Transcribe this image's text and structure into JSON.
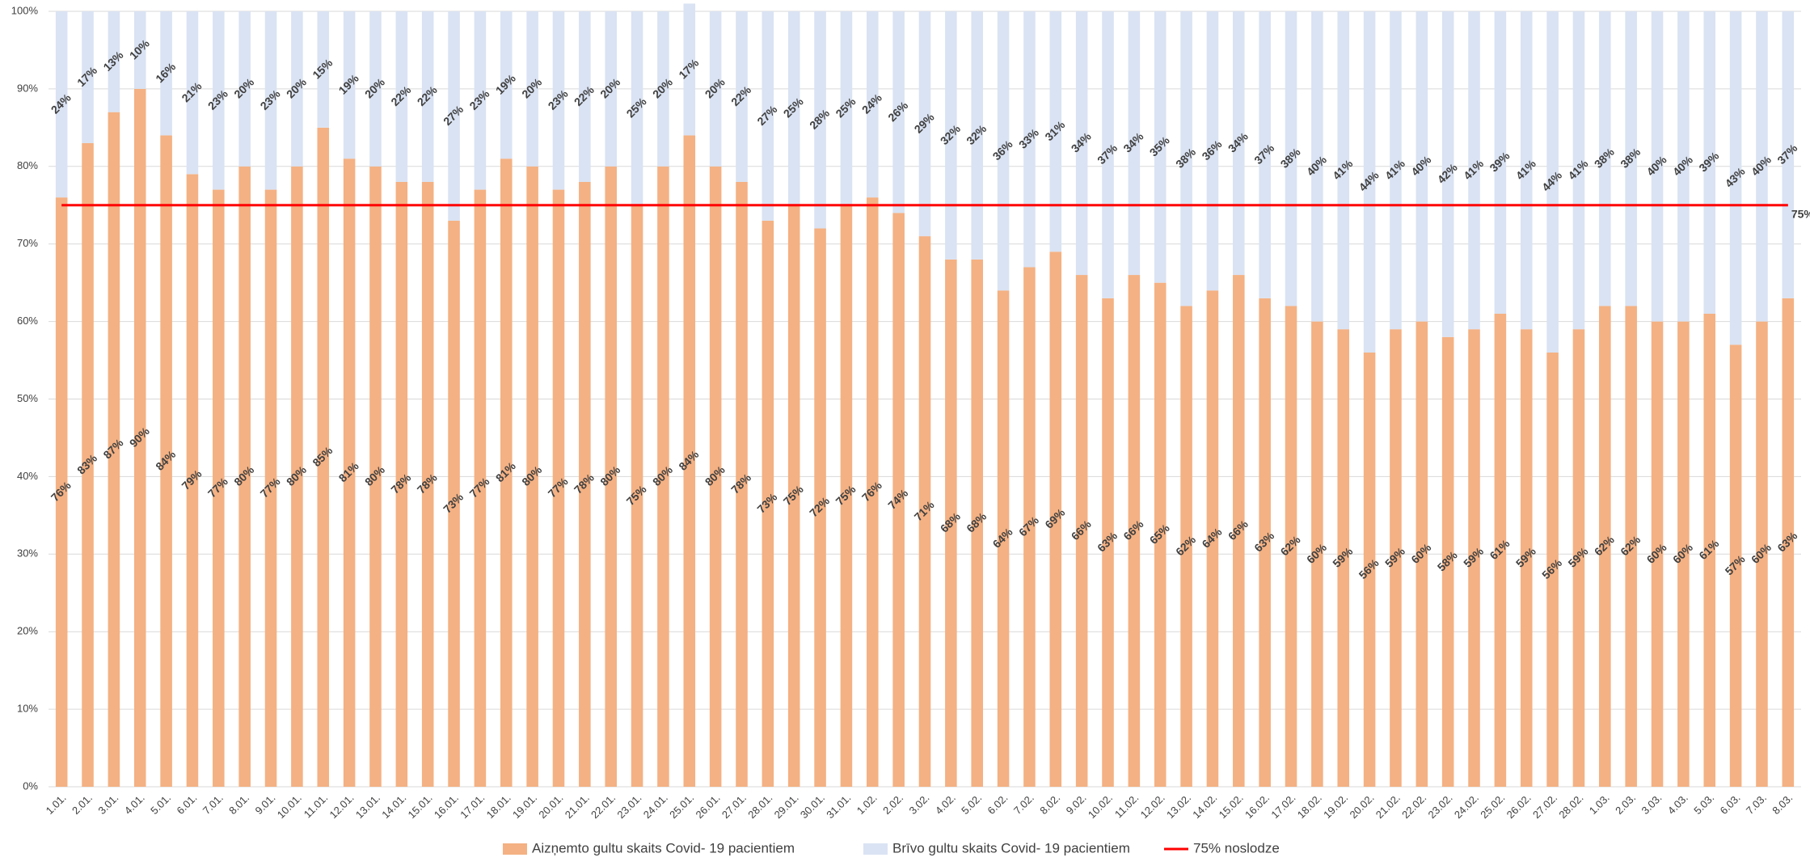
{
  "chart_data": {
    "type": "stacked_bar_100",
    "categories": [
      "1.01.",
      "2.01.",
      "3.01.",
      "4.01.",
      "5.01.",
      "6.01.",
      "7.01.",
      "8.01.",
      "9.01.",
      "10.01.",
      "11.01.",
      "12.01.",
      "13.01.",
      "14.01.",
      "15.01.",
      "16.01.",
      "17.01.",
      "18.01.",
      "19.01.",
      "20.01.",
      "21.01.",
      "22.01.",
      "23.01.",
      "24.01.",
      "25.01.",
      "26.01.",
      "27.01.",
      "28.01.",
      "29.01.",
      "30.01.",
      "31.01.",
      "1.02.",
      "2.02.",
      "3.02.",
      "4.02.",
      "5.02.",
      "6.02.",
      "7.02.",
      "8.02.",
      "9.02.",
      "10.02.",
      "11.02.",
      "12.02.",
      "13.02.",
      "14.02.",
      "15.02.",
      "16.02.",
      "17.02.",
      "18.02.",
      "19.02.",
      "20.02.",
      "21.02.",
      "22.02.",
      "23.02.",
      "24.02.",
      "25.02.",
      "26.02.",
      "27.02.",
      "28.02.",
      "1.03.",
      "2.03.",
      "3.03.",
      "4.03.",
      "5.03.",
      "6.03.",
      "7.03.",
      "8.03."
    ],
    "series": [
      {
        "name": "Aizņemto gultu skaits Covid- 19 pacientiem",
        "color": "#f4b183",
        "values": [
          76,
          83,
          87,
          90,
          84,
          79,
          77,
          80,
          77,
          80,
          85,
          81,
          80,
          78,
          78,
          73,
          77,
          81,
          80,
          77,
          78,
          80,
          75,
          80,
          84,
          80,
          78,
          73,
          75,
          72,
          75,
          76,
          74,
          71,
          68,
          68,
          64,
          67,
          69,
          66,
          63,
          66,
          65,
          62,
          64,
          66,
          63,
          62,
          60,
          59,
          56,
          59,
          60,
          58,
          59,
          61,
          59,
          56,
          59,
          62,
          62,
          60,
          60,
          61,
          57,
          60,
          63
        ],
        "value_labels": [
          "76%",
          "83%",
          "87%",
          "90%",
          "84%",
          "79%",
          "77%",
          "80%",
          "77%",
          "80%",
          "85%",
          "81%",
          "80%",
          "78%",
          "78%",
          "73%",
          "77%",
          "81%",
          "80%",
          "77%",
          "78%",
          "80%",
          "75%",
          "80%",
          "84%",
          "80%",
          "78%",
          "73%",
          "75%",
          "72%",
          "75%",
          "76%",
          "74%",
          "71%",
          "68%",
          "68%",
          "64%",
          "67%",
          "69%",
          "66%",
          "63%",
          "66%",
          "65%",
          "62%",
          "64%",
          "66%",
          "63%",
          "62%",
          "60%",
          "59%",
          "56%",
          "59%",
          "60%",
          "58%",
          "59%",
          "61%",
          "59%",
          "56%",
          "59%",
          "62%",
          "62%",
          "60%",
          "60%",
          "61%",
          "57%",
          "60%",
          "63%"
        ]
      },
      {
        "name": "Brīvo gultu skaits Covid- 19 pacientiem",
        "color": "#dae3f3",
        "values": [
          24,
          17,
          13,
          10,
          16,
          21,
          23,
          20,
          23,
          20,
          15,
          19,
          20,
          22,
          22,
          27,
          23,
          19,
          20,
          23,
          22,
          20,
          25,
          20,
          17,
          20,
          22,
          27,
          25,
          28,
          25,
          24,
          26,
          29,
          32,
          32,
          36,
          33,
          31,
          34,
          37,
          34,
          35,
          38,
          36,
          34,
          37,
          38,
          40,
          41,
          44,
          41,
          40,
          42,
          41,
          39,
          41,
          44,
          41,
          38,
          38,
          40,
          40,
          39,
          43,
          40,
          37
        ],
        "value_labels": [
          "24%",
          "17%",
          "13%",
          "10%",
          "16%",
          "21%",
          "23%",
          "20%",
          "23%",
          "20%",
          "15%",
          "19%",
          "20%",
          "22%",
          "22%",
          "27%",
          "23%",
          "19%",
          "20%",
          "23%",
          "22%",
          "20%",
          "25%",
          "20%",
          "17%",
          "20%",
          "22%",
          "27%",
          "25%",
          "28%",
          "25%",
          "24%",
          "26%",
          "29%",
          "32%",
          "32%",
          "36%",
          "33%",
          "31%",
          "34%",
          "37%",
          "34%",
          "35%",
          "38%",
          "36%",
          "34%",
          "37%",
          "38%",
          "40%",
          "41%",
          "44%",
          "41%",
          "40%",
          "42%",
          "41%",
          "39%",
          "41%",
          "44%",
          "41%",
          "38%",
          "38%",
          "40%",
          "40%",
          "39%",
          "43%",
          "40%",
          "37%"
        ]
      }
    ],
    "reference_line": {
      "name": "75% noslodze",
      "value": 75,
      "value_label": "75%",
      "color": "#ff0000"
    },
    "ylim": [
      0,
      100
    ],
    "yticks": [
      {
        "value": 0,
        "label": "0%"
      },
      {
        "value": 10,
        "label": "10%"
      },
      {
        "value": 20,
        "label": "20%"
      },
      {
        "value": 30,
        "label": "30%"
      },
      {
        "value": 40,
        "label": "40%"
      },
      {
        "value": 50,
        "label": "50%"
      },
      {
        "value": 60,
        "label": "60%"
      },
      {
        "value": 70,
        "label": "70%"
      },
      {
        "value": 80,
        "label": "80%"
      },
      {
        "value": 90,
        "label": "90%"
      },
      {
        "value": 100,
        "label": "100%"
      }
    ],
    "grid": true,
    "legend": "bottom"
  }
}
